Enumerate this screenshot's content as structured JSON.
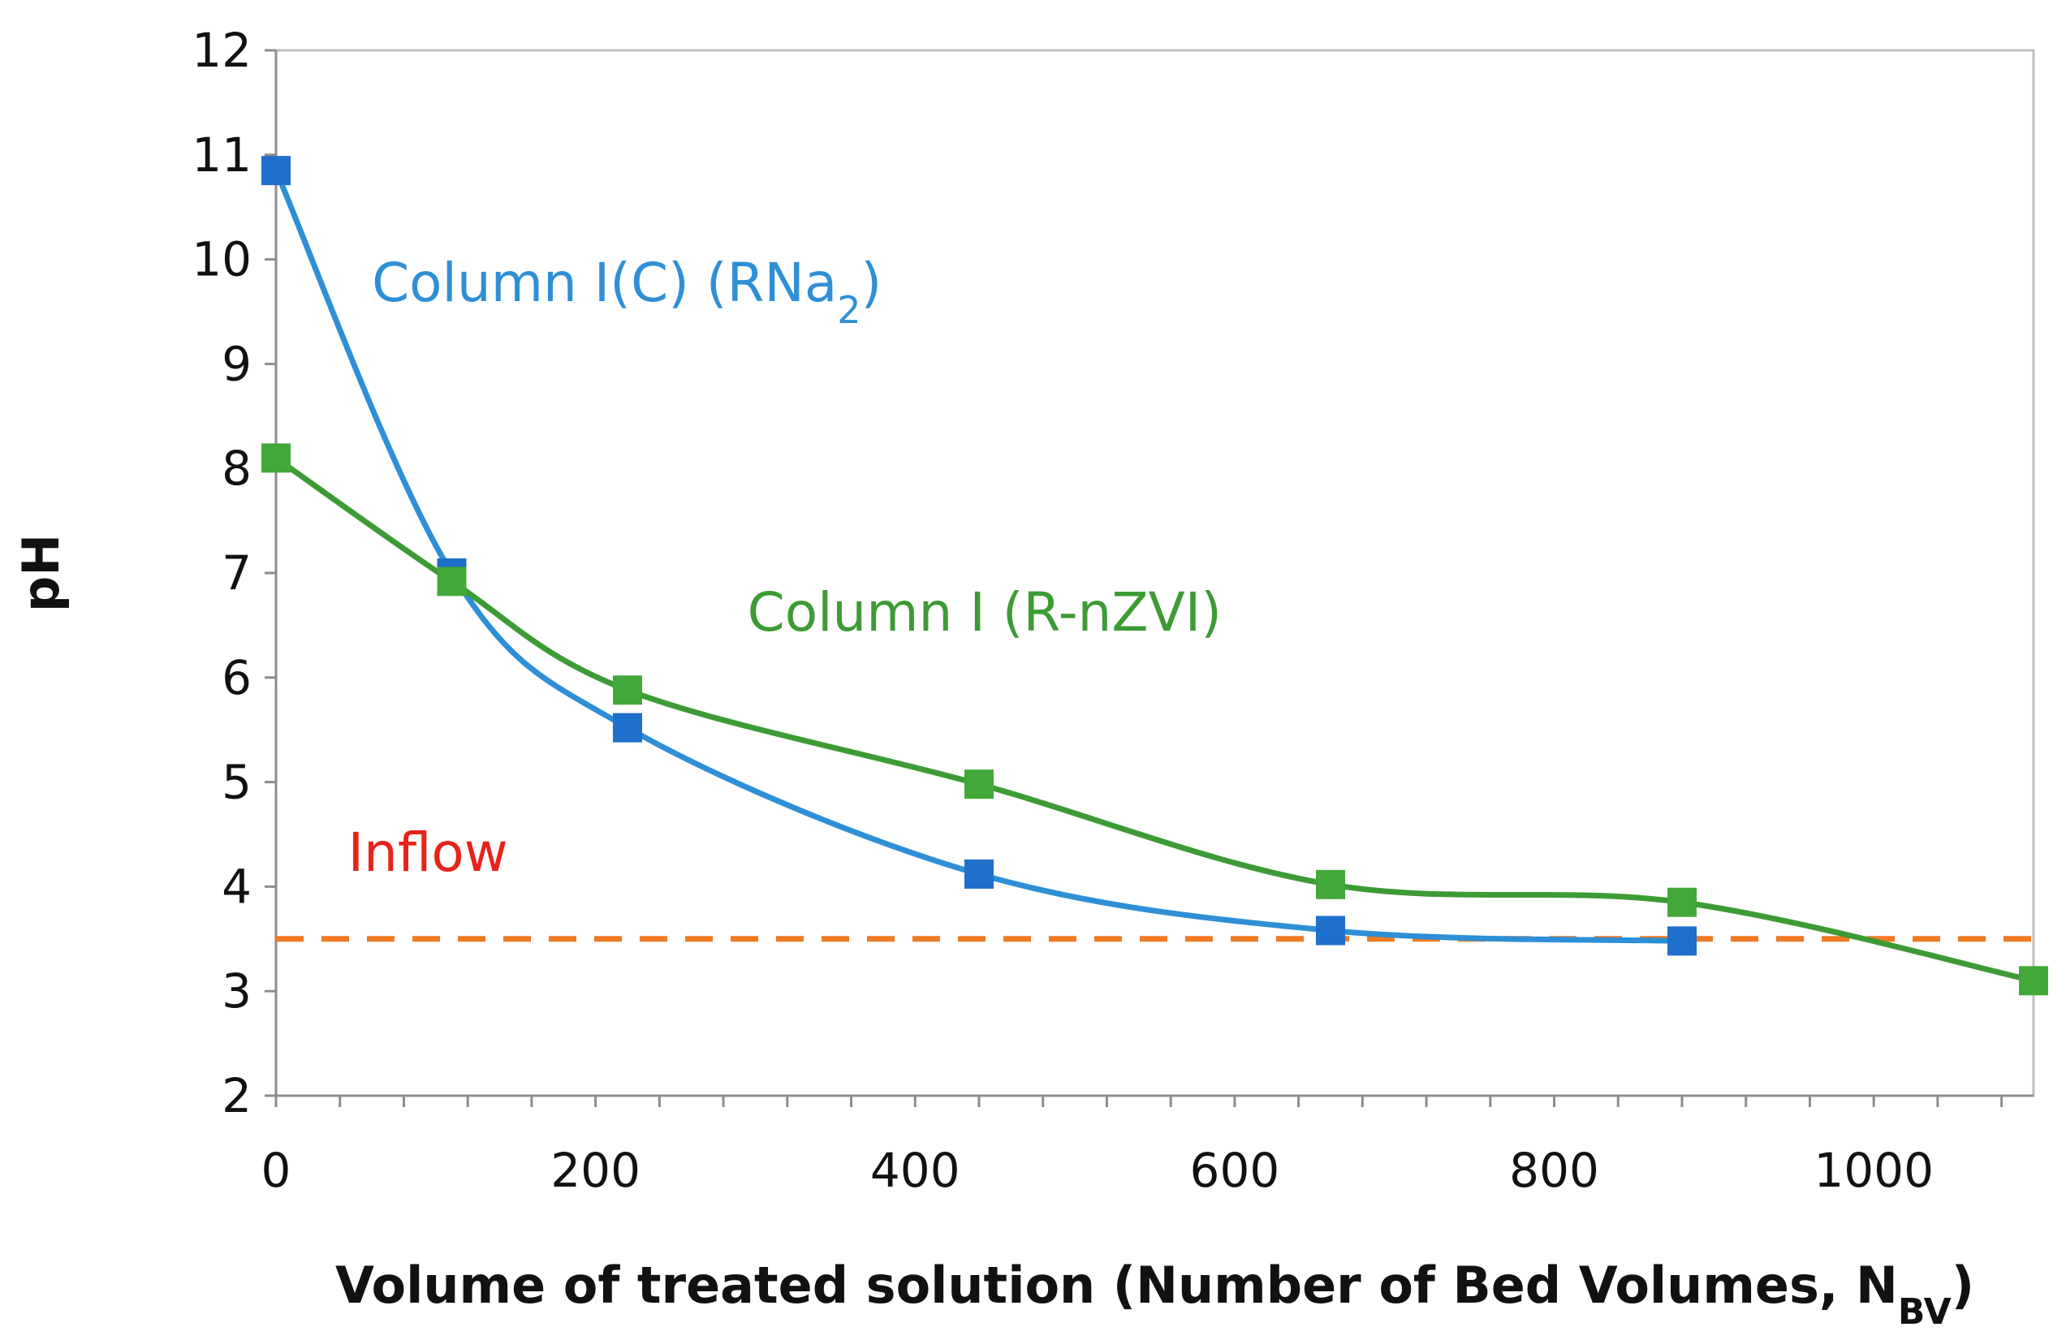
{
  "chart_data": {
    "type": "line",
    "title": "",
    "xlabel_main": "Volume of treated solution  (Number of Bed Volumes, N",
    "xlabel_sub": "BV",
    "xlabel_end": ")",
    "ylabel": "pH",
    "xlim": [
      0,
      1100
    ],
    "ylim": [
      2,
      12
    ],
    "xticks": [
      0,
      200,
      400,
      600,
      800,
      1000
    ],
    "yticks": [
      2,
      3,
      4,
      5,
      6,
      7,
      8,
      9,
      10,
      11,
      12
    ],
    "x_minor_step": 40,
    "grid": false,
    "series": [
      {
        "name": "Column I(C) (RNa",
        "name_sub": "2",
        "name_end": ")",
        "color": "#2f8fd6",
        "marker_color": "#1f6fcc",
        "x": [
          0,
          110,
          220,
          440,
          660,
          880
        ],
        "y": [
          10.85,
          7.0,
          5.52,
          4.12,
          3.58,
          3.48
        ],
        "label_at": [
          60,
          9.6
        ]
      },
      {
        "name": "Column I (R-nZVI)",
        "name_sub": "",
        "name_end": "",
        "color": "#3d9b35",
        "marker_color": "#43a83a",
        "x": [
          0,
          110,
          220,
          440,
          660,
          880,
          1100
        ],
        "y": [
          8.1,
          6.92,
          5.88,
          4.98,
          4.02,
          3.85,
          3.1
        ],
        "label_at": [
          295,
          6.45
        ]
      }
    ],
    "reference_line": {
      "name": "Inflow",
      "y": 3.5,
      "color": "#f07a22",
      "label_color": "#e8231a",
      "label_at": [
        45,
        4.15
      ]
    }
  }
}
